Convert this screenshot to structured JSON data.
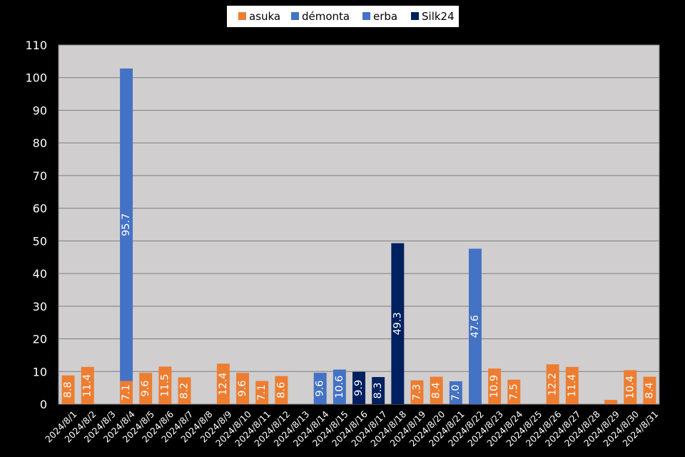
{
  "chart_data": {
    "type": "bar",
    "stacked": true,
    "ylim": [
      0,
      110
    ],
    "y_ticks": [
      0,
      10,
      20,
      30,
      40,
      50,
      60,
      70,
      80,
      90,
      100,
      110
    ],
    "grid": true,
    "legend_position": "top-center",
    "categories": [
      "2024/8/1",
      "2024/8/2",
      "2024/8/3",
      "2024/8/4",
      "2024/8/5",
      "2024/8/6",
      "2024/8/7",
      "2024/8/8",
      "2024/8/9",
      "2024/8/10",
      "2024/8/11",
      "2024/8/12",
      "2024/8/13",
      "2024/8/14",
      "2024/8/15",
      "2024/8/16",
      "2024/8/17",
      "2024/8/18",
      "2024/8/19",
      "2024/8/20",
      "2024/8/21",
      "2024/8/22",
      "2024/8/23",
      "2024/8/24",
      "2024/8/25",
      "2024/8/26",
      "2024/8/27",
      "2024/8/28",
      "2024/8/29",
      "2024/8/30",
      "2024/8/31"
    ],
    "series": [
      {
        "name": "asuka",
        "color": "#ED7D31",
        "values": [
          8.8,
          11.4,
          0,
          7.1,
          9.6,
          11.5,
          8.2,
          0,
          12.4,
          9.6,
          7.1,
          8.6,
          0,
          0,
          0,
          0,
          0,
          0,
          7.3,
          8.4,
          0,
          0,
          10.9,
          7.5,
          0,
          12.2,
          11.4,
          0,
          1.3,
          10.4,
          8.4
        ],
        "labels": [
          "8.8",
          "11.4",
          "",
          "7.1",
          "9.6",
          "11.5",
          "8.2",
          "",
          "12.4",
          "9.6",
          "7.1",
          "8.6",
          "",
          "",
          "",
          "",
          "",
          "",
          "7.3",
          "8.4",
          "",
          "",
          "10.9",
          "7.5",
          "",
          "12.2",
          "11.4",
          "",
          "",
          "10.4",
          "8.4"
        ]
      },
      {
        "name": "démonta",
        "color": "#4472C4",
        "values": [
          0,
          0,
          0,
          95.7,
          0,
          0,
          0,
          0,
          0,
          0,
          0,
          0,
          0,
          9.6,
          10.6,
          0,
          0,
          0,
          0,
          0,
          7.0,
          47.6,
          0,
          0,
          0,
          0,
          0,
          0,
          0,
          0,
          0
        ],
        "labels": [
          "",
          "",
          "",
          "95.7",
          "",
          "",
          "",
          "",
          "",
          "",
          "",
          "",
          "",
          "9.6",
          "10.6",
          "",
          "",
          "",
          "",
          "",
          "7.0",
          "47.6",
          "",
          "",
          "",
          "",
          "",
          "",
          "",
          "",
          ""
        ]
      },
      {
        "name": "erba",
        "color": "#4472C4",
        "values": [
          0,
          0,
          0,
          0,
          0,
          0,
          0,
          0,
          0,
          0,
          0,
          0,
          0,
          0,
          0,
          0,
          0,
          0,
          0,
          0,
          0,
          0,
          0,
          0,
          0,
          0,
          0,
          0,
          0,
          0,
          0
        ],
        "labels": [
          "",
          "",
          "",
          "",
          "",
          "",
          "",
          "",
          "",
          "",
          "",
          "",
          "",
          "",
          "",
          "",
          "",
          "",
          "",
          "",
          "",
          "",
          "",
          "",
          "",
          "",
          "",
          "",
          "",
          "",
          ""
        ]
      },
      {
        "name": "Silk24",
        "color": "#002060",
        "values": [
          0,
          0,
          0,
          0,
          0,
          0,
          0,
          0,
          0,
          0,
          0,
          0,
          0,
          0,
          0,
          9.9,
          8.3,
          49.3,
          0,
          0,
          0,
          0,
          0,
          0,
          0,
          0,
          0,
          0,
          0,
          0,
          0
        ],
        "labels": [
          "",
          "",
          "",
          "",
          "",
          "",
          "",
          "",
          "",
          "",
          "",
          "",
          "",
          "",
          "",
          "9.9",
          "8.3",
          "49.3",
          "",
          "",
          "",
          "",
          "",
          "",
          "",
          "",
          "",
          "",
          "",
          "",
          ""
        ]
      }
    ]
  }
}
